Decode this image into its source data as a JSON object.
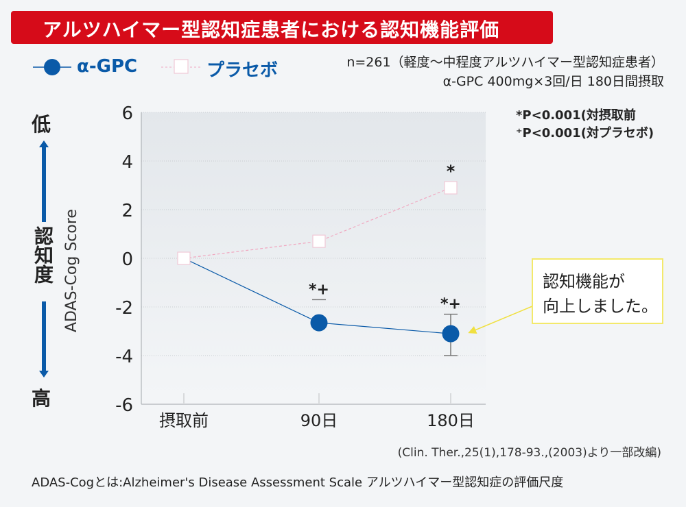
{
  "title": "アルツハイマー型認知症患者における認知機能評価",
  "legend": [
    {
      "label": "α-GPC",
      "marker": "filled-circle",
      "color": "#0a5aa8"
    },
    {
      "label": "プラセボ",
      "marker": "open-square",
      "color": "#f0b8cc"
    }
  ],
  "meta": {
    "line1": "n=261（軽度～中程度アルツハイマー型認知症患者）",
    "line2": "α-GPC 400mg×3回/日 180日間摂取"
  },
  "significance": {
    "line1": "*P<0.001(対摂取前",
    "line2": "⁺P<0.001(対プラセボ)"
  },
  "y_axis_side": {
    "top": "低",
    "middle": "認知度",
    "bottom": "高"
  },
  "callout": {
    "line1": "認知機能が",
    "line2": "向上しました。"
  },
  "source": "(Clin. Ther.,25(1),178-93.,(2003)より一部改編)",
  "footnote": "ADAS-Cogとは:Alzheimer's Disease Assessment Scale アルツハイマー型認知症の評価尺度",
  "chart_data": {
    "type": "line",
    "title": "アルツハイマー型認知症患者における認知機能評価",
    "xlabel": "",
    "ylabel": "ADAS-Cog Score",
    "categories": [
      "摂取前",
      "90日",
      "180日"
    ],
    "ylim": [
      -6,
      6
    ],
    "yticks": [
      6,
      4,
      2,
      0,
      -2,
      -4,
      -6
    ],
    "ytick_labels": [
      "6",
      "4",
      "2",
      "0",
      "-2",
      "-4",
      "-6"
    ],
    "grid": true,
    "legend_position": "top-left",
    "series": [
      {
        "name": "α-GPC",
        "values": [
          0,
          -2.65,
          -3.1
        ],
        "error_upper": [
          null,
          -1.7,
          -2.3
        ],
        "error_lower": [
          null,
          null,
          -4.0
        ],
        "annotations": [
          "",
          "*+",
          "*+"
        ],
        "color": "#0a5aa8"
      },
      {
        "name": "プラセボ",
        "values": [
          0,
          0.7,
          2.9
        ],
        "annotations": [
          "",
          "",
          "*"
        ],
        "color": "#f0a8c0"
      }
    ]
  }
}
